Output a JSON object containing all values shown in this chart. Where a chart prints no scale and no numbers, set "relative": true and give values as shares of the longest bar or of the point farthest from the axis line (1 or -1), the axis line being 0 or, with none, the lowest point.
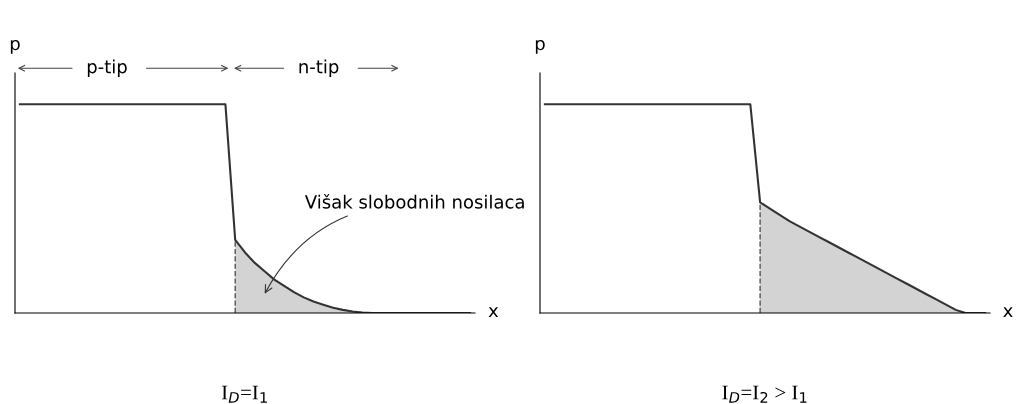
{
  "chart_data": [
    {
      "type": "line",
      "relative": true,
      "title": "I$_{D}$=I$_{1}$",
      "xlabel": "x",
      "ylabel": "p",
      "legend": false,
      "grid": false,
      "annotations": [
        "p-tip",
        "n-tip",
        "Višak slobodnih nosilaca"
      ],
      "categories": [
        null,
        null,
        null,
        null,
        null,
        null,
        null,
        null,
        null,
        null,
        null,
        null,
        null,
        null,
        null,
        null,
        null,
        null,
        null,
        null,
        null,
        null,
        null,
        null,
        null,
        null,
        null,
        null,
        null,
        null,
        null,
        null,
        null,
        null,
        null,
        null,
        null,
        null,
        null,
        null,
        null,
        null,
        null,
        null,
        null,
        null,
        null
      ],
      "series": [
        {
          "type": "area",
          "color": "#d3d3d3",
          "values": [
            null,
            null,
            null,
            null,
            null,
            null,
            null,
            null,
            null,
            null,
            null,
            null,
            null,
            null,
            null,
            null,
            null,
            null,
            null,
            null,
            null,
            null,
            0.35,
            0.29,
            0.24,
            0.2,
            0.16,
            0.13,
            0.1,
            0.075,
            0.055,
            0.04,
            0.025,
            0.015,
            0.007,
            0.002,
            0,
            0,
            0,
            0,
            0,
            0,
            0,
            0,
            0,
            0,
            0
          ]
        },
        {
          "color": "#333333",
          "values": [
            1,
            1,
            1,
            1,
            1,
            1,
            1,
            1,
            1,
            1,
            1,
            1,
            1,
            1,
            1,
            1,
            1,
            1,
            1,
            1,
            1,
            1,
            0.35,
            0.29,
            0.24,
            0.2,
            0.16,
            0.13,
            0.1,
            0.075,
            0.055,
            0.04,
            0.025,
            0.015,
            0.007,
            0.002,
            0,
            0,
            0,
            0,
            0,
            0,
            0,
            0,
            0,
            0,
            0
          ]
        }
      ]
    },
    {
      "type": "line",
      "relative": true,
      "title": "I$_{D}$=I$_{2}$ > I$_{1}$",
      "xlabel": "x",
      "ylabel": "p",
      "legend": false,
      "grid": false,
      "categories": [
        null,
        null,
        null,
        null,
        null,
        null,
        null,
        null,
        null,
        null,
        null,
        null,
        null,
        null,
        null,
        null,
        null,
        null,
        null,
        null,
        null,
        null,
        null,
        null,
        null,
        null,
        null,
        null,
        null,
        null,
        null,
        null,
        null,
        null,
        null,
        null,
        null,
        null,
        null,
        null,
        null,
        null,
        null,
        null,
        null,
        null
      ],
      "series": [
        {
          "type": "area",
          "color": "#d3d3d3",
          "values": [
            null,
            null,
            null,
            null,
            null,
            null,
            null,
            null,
            null,
            null,
            null,
            null,
            null,
            null,
            null,
            null,
            null,
            null,
            null,
            null,
            null,
            null,
            0.53,
            0.5,
            0.47,
            0.44,
            0.415,
            0.39,
            0.365,
            0.34,
            0.315,
            0.29,
            0.265,
            0.24,
            0.215,
            0.19,
            0.165,
            0.14,
            0.115,
            0.09,
            0.065,
            0.04,
            0.015,
            0,
            0,
            0
          ]
        },
        {
          "color": "#333333",
          "values": [
            1,
            1,
            1,
            1,
            1,
            1,
            1,
            1,
            1,
            1,
            1,
            1,
            1,
            1,
            1,
            1,
            1,
            1,
            1,
            1,
            1,
            1,
            0.53,
            0.5,
            0.47,
            0.44,
            0.415,
            0.39,
            0.365,
            0.34,
            0.315,
            0.29,
            0.265,
            0.24,
            0.215,
            0.19,
            0.165,
            0.14,
            0.115,
            0.09,
            0.065,
            0.04,
            0.015,
            0,
            0,
            0
          ]
        }
      ]
    }
  ]
}
